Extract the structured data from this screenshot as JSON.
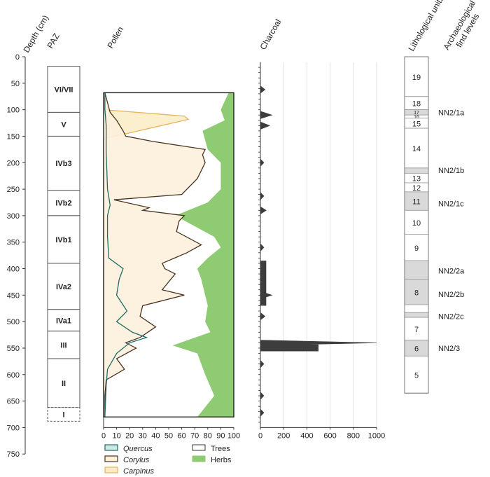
{
  "headers": {
    "depth": "Depth (cm)",
    "paz": "PAZ",
    "pollen": "Pollen",
    "charcoal": "Charcoal",
    "litho": "Lithological units",
    "arch": "Archaeological find levels"
  },
  "depth_ticks": [
    "0",
    "50",
    "100",
    "150",
    "200",
    "250",
    "300",
    "350",
    "400",
    "450",
    "500",
    "550",
    "600",
    "650",
    "700",
    "750"
  ],
  "paz_zones": [
    {
      "label": "VI/VII",
      "top": 18,
      "bottom": 105
    },
    {
      "label": "V",
      "top": 105,
      "bottom": 150
    },
    {
      "label": "IVb3",
      "top": 150,
      "bottom": 252
    },
    {
      "label": "IVb2",
      "top": 252,
      "bottom": 300
    },
    {
      "label": "IVb1",
      "top": 300,
      "bottom": 390
    },
    {
      "label": "IVa2",
      "top": 390,
      "bottom": 477
    },
    {
      "label": "IVa1",
      "top": 477,
      "bottom": 518
    },
    {
      "label": "III",
      "top": 518,
      "bottom": 570
    },
    {
      "label": "II",
      "top": 570,
      "bottom": 662
    },
    {
      "label": "I",
      "top": 662,
      "bottom": 688
    }
  ],
  "pollen_ticks": [
    "0",
    "10",
    "20",
    "30",
    "40",
    "50",
    "60",
    "70",
    "80",
    "90",
    "100"
  ],
  "charcoal_ticks": [
    "0",
    "200",
    "400",
    "600",
    "800",
    "1000"
  ],
  "litho_units": [
    {
      "label": "19",
      "top": 0,
      "bottom": 75,
      "gray": false
    },
    {
      "label": "18",
      "top": 75,
      "bottom": 100,
      "gray": false
    },
    {
      "label": "17",
      "top": 100,
      "bottom": 110,
      "gray": true
    },
    {
      "label": "16",
      "top": 110,
      "bottom": 116,
      "gray": false
    },
    {
      "label": "15",
      "top": 116,
      "bottom": 135,
      "gray": false
    },
    {
      "label": "14",
      "top": 135,
      "bottom": 210,
      "gray": false
    },
    {
      "label": "",
      "top": 210,
      "bottom": 220,
      "gray": true
    },
    {
      "label": "13",
      "top": 220,
      "bottom": 238,
      "gray": false
    },
    {
      "label": "12",
      "top": 238,
      "bottom": 255,
      "gray": false
    },
    {
      "label": "11",
      "top": 255,
      "bottom": 290,
      "gray": true
    },
    {
      "label": "10",
      "top": 290,
      "bottom": 335,
      "gray": false
    },
    {
      "label": "9",
      "top": 335,
      "bottom": 385,
      "gray": false
    },
    {
      "label": "",
      "top": 385,
      "bottom": 420,
      "gray": true
    },
    {
      "label": "8",
      "top": 420,
      "bottom": 468,
      "gray": true
    },
    {
      "label": "",
      "top": 468,
      "bottom": 483,
      "gray": false
    },
    {
      "label": "",
      "top": 483,
      "bottom": 492,
      "gray": true
    },
    {
      "label": "7",
      "top": 492,
      "bottom": 535,
      "gray": false
    },
    {
      "label": "6",
      "top": 535,
      "bottom": 565,
      "gray": true
    },
    {
      "label": "5",
      "top": 565,
      "bottom": 635,
      "gray": false
    }
  ],
  "arch_levels": [
    {
      "label": "NN2/1a",
      "depth": 105
    },
    {
      "label": "NN2/1b",
      "depth": 214
    },
    {
      "label": "NN2/1c",
      "depth": 277
    },
    {
      "label": "NN2/2a",
      "depth": 404
    },
    {
      "label": "NN2/2b",
      "depth": 448
    },
    {
      "label": "NN2/2c",
      "depth": 490
    },
    {
      "label": "NN2/3",
      "depth": 550
    }
  ],
  "legend": {
    "quercus": "Quercus",
    "corylus": "Corylus",
    "carpinus": "Carpinus",
    "trees": "Trees",
    "herbs": "Herbs"
  },
  "colors": {
    "herbs": "#8ecb72",
    "quercus": "#1f6b64",
    "corylus": "#4a3420",
    "corylus_fill": "#fdefdc",
    "carpinus": "#e6b45a",
    "carpinus_fill": "#fbedc9",
    "charcoal": "#3d3d3d",
    "gray": "#d9d9d9"
  },
  "chart_data": {
    "type": "area",
    "y_axis": {
      "label": "Depth (cm)",
      "range": [
        0,
        750
      ],
      "inverted": true
    },
    "pollen": {
      "x_range": [
        0,
        100
      ],
      "series": [
        {
          "name": "Quercus",
          "depth": [
            68,
            100,
            130,
            180,
            250,
            280,
            300,
            340,
            380,
            400,
            420,
            450,
            480,
            500,
            520,
            530,
            540,
            560,
            590,
            620,
            680
          ],
          "values": [
            1,
            1,
            2,
            2,
            3,
            5,
            3,
            3,
            4,
            15,
            12,
            10,
            18,
            10,
            22,
            33,
            20,
            10,
            3,
            2,
            1
          ]
        },
        {
          "name": "Corylus",
          "depth": [
            68,
            105,
            120,
            140,
            150,
            160,
            175,
            185,
            200,
            230,
            260,
            270,
            285,
            290,
            300,
            310,
            330,
            355,
            370,
            390,
            400,
            410,
            440,
            450,
            470,
            490,
            510,
            530,
            540,
            550,
            570,
            590,
            610,
            640,
            680
          ],
          "values": [
            1,
            5,
            10,
            15,
            17,
            38,
            78,
            76,
            78,
            72,
            60,
            8,
            35,
            30,
            62,
            58,
            56,
            75,
            64,
            45,
            47,
            55,
            45,
            62,
            30,
            28,
            40,
            28,
            17,
            25,
            10,
            16,
            2,
            1,
            1
          ]
        },
        {
          "name": "Carpinus",
          "depth": [
            100,
            112,
            118,
            120,
            155,
            680
          ],
          "values": [
            0,
            62,
            65,
            62,
            0,
            0
          ]
        },
        {
          "name": "Trees",
          "depth": [
            68,
            100,
            120,
            140,
            175,
            200,
            250,
            275,
            300,
            340,
            360,
            380,
            400,
            420,
            450,
            470,
            500,
            520,
            545,
            560,
            600,
            640,
            680
          ],
          "values": [
            96,
            90,
            93,
            76,
            80,
            90,
            90,
            80,
            55,
            85,
            90,
            80,
            72,
            75,
            78,
            80,
            78,
            82,
            53,
            72,
            78,
            85,
            72
          ]
        }
      ]
    },
    "charcoal": {
      "x_range": [
        0,
        1000
      ],
      "peaks": [
        {
          "depth": 62,
          "value": 40
        },
        {
          "depth": 110,
          "value": 100
        },
        {
          "depth": 130,
          "value": 80
        },
        {
          "depth": 200,
          "value": 30
        },
        {
          "depth": 263,
          "value": 30
        },
        {
          "depth": 290,
          "value": 50
        },
        {
          "depth": 360,
          "value": 30
        },
        {
          "depth": 400,
          "value": 40
        },
        {
          "depth": 450,
          "value": 100
        },
        {
          "depth": 490,
          "value": 40
        },
        {
          "depth": 540,
          "value": 1000
        },
        {
          "depth": 550,
          "value": 500
        },
        {
          "depth": 580,
          "value": 30
        },
        {
          "depth": 640,
          "value": 30
        },
        {
          "depth": 672,
          "value": 30
        }
      ]
    }
  }
}
